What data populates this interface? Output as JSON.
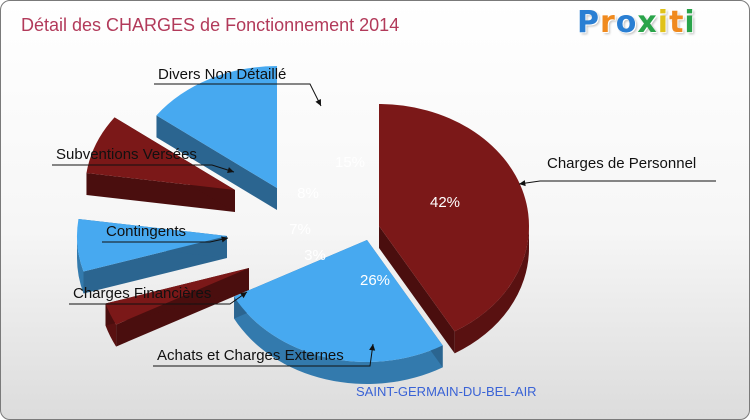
{
  "header": {
    "title": "Détail des CHARGES de Fonctionnement 2014",
    "logo_text": "Proxiti"
  },
  "colors": {
    "dark_red": "#7b1818",
    "blue": "#47a9f0",
    "title": "#b23a5a",
    "city": "#3a63d6"
  },
  "chart_data": {
    "type": "pie",
    "title": "Détail des CHARGES de Fonctionnement 2014",
    "subtitle": "SAINT-GERMAIN-DU-BEL-AIR",
    "slices": [
      {
        "label": "Charges de Personnel",
        "value": 42,
        "display": "42%",
        "color": "dark_red"
      },
      {
        "label": "Achats et Charges Externes",
        "value": 26,
        "display": "26%",
        "color": "blue"
      },
      {
        "label": "Charges Financières",
        "value": 3,
        "display": "3%",
        "color": "dark_red"
      },
      {
        "label": "Contingents",
        "value": 7,
        "display": "7%",
        "color": "blue"
      },
      {
        "label": "Subventions Versées",
        "value": 8,
        "display": "8%",
        "color": "dark_red"
      },
      {
        "label": "Divers Non Détaillé",
        "value": 15,
        "display": "15%",
        "color": "blue"
      }
    ]
  }
}
